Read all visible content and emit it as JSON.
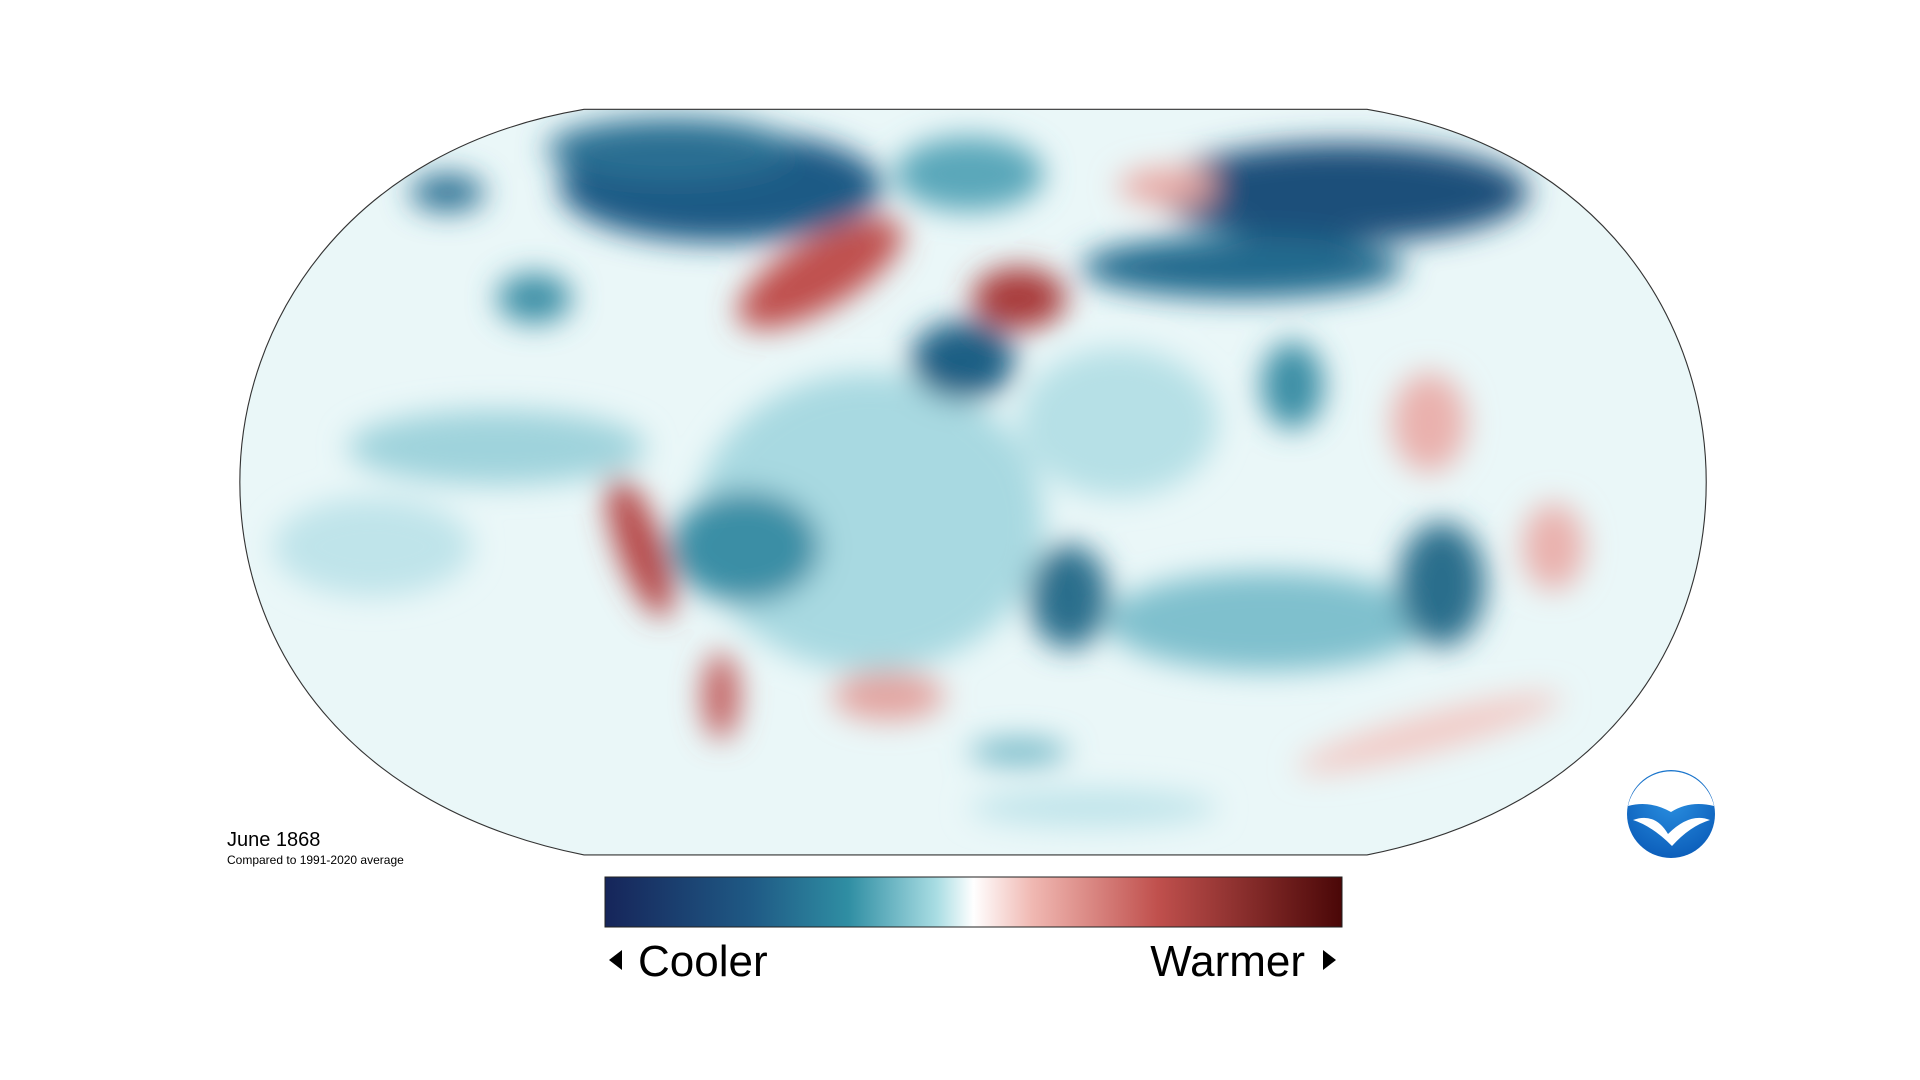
{
  "caption": {
    "title": "June 1868",
    "subtitle": "Compared to 1991-2020 average"
  },
  "legend": {
    "low": "Cooler",
    "high": "Warmer"
  },
  "logo": "NOAA"
}
